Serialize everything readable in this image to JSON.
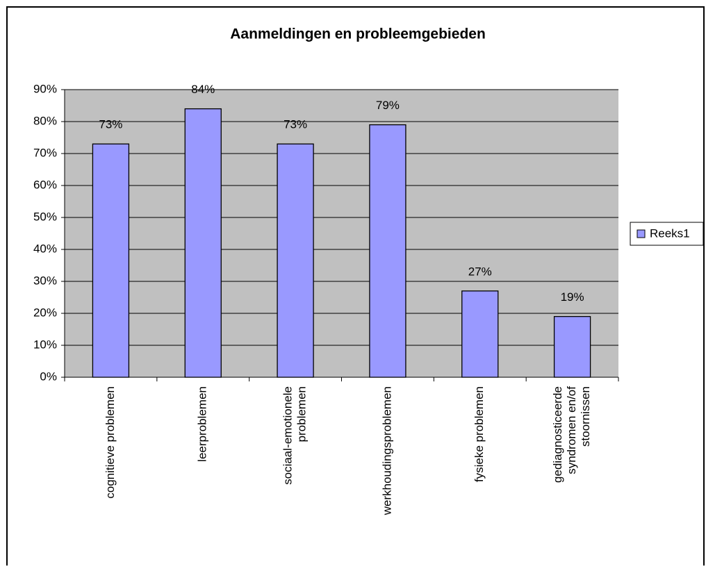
{
  "chart_data": {
    "type": "bar",
    "title": "Aanmeldingen en probleemgebieden",
    "categories": [
      [
        "cognitieve problemen"
      ],
      [
        "leerproblemen"
      ],
      [
        "sociaal-emotionele",
        "problemen"
      ],
      [
        "werkhoudingsproblemen"
      ],
      [
        "fysieke problemen"
      ],
      [
        "gediagnosticeerde",
        "syndromen en/of",
        "stoornissen"
      ]
    ],
    "series": [
      {
        "name": "Reeks1",
        "color": "#9999ff",
        "values": [
          73,
          84,
          73,
          79,
          27,
          19
        ],
        "value_labels": [
          "73%",
          "84%",
          "73%",
          "79%",
          "27%",
          "19%"
        ]
      }
    ],
    "ylim": [
      0,
      90
    ],
    "yticks": [
      {
        "value": 0,
        "label": "0%"
      },
      {
        "value": 10,
        "label": "10%"
      },
      {
        "value": 20,
        "label": "20%"
      },
      {
        "value": 30,
        "label": "30%"
      },
      {
        "value": 40,
        "label": "40%"
      },
      {
        "value": 50,
        "label": "50%"
      },
      {
        "value": 60,
        "label": "60%"
      },
      {
        "value": 70,
        "label": "70%"
      },
      {
        "value": 80,
        "label": "80%"
      },
      {
        "value": 90,
        "label": "90%"
      }
    ],
    "grid": true,
    "legend": "right",
    "plot_background": "#c0c0c0"
  }
}
